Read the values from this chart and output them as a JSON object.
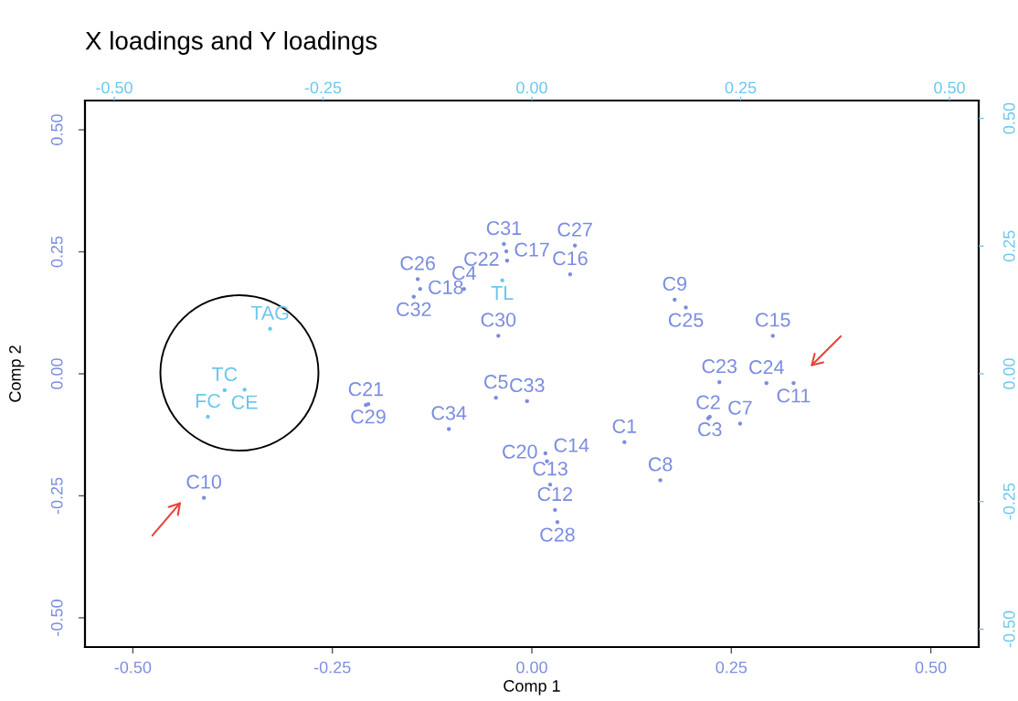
{
  "chart_data": {
    "type": "scatter",
    "title": "X loadings and Y loadings",
    "xlabel": "Comp 1",
    "ylabel": "Comp 2",
    "marker": "circle",
    "xlim": [
      -0.56,
      0.56
    ],
    "ylim": [
      -0.56,
      0.56
    ],
    "xticks": [
      {
        "value": -0.5,
        "label": "-0.50"
      },
      {
        "value": -0.25,
        "label": "-0.25"
      },
      {
        "value": 0,
        "label": "0.00"
      },
      {
        "value": 0.25,
        "label": "0.25"
      },
      {
        "value": 0.5,
        "label": "0.50"
      }
    ],
    "yticks": [
      {
        "value": -0.5,
        "label": "-0.50"
      },
      {
        "value": -0.25,
        "label": "-0.25"
      },
      {
        "value": 0,
        "label": "0.00"
      },
      {
        "value": 0.25,
        "label": "0.25"
      },
      {
        "value": 0.5,
        "label": "0.50"
      }
    ],
    "x2lim": [
      -0.535,
      0.535
    ],
    "y2lim": [
      -0.535,
      0.535
    ],
    "x2ticks": [
      {
        "value": -0.5,
        "label": "-0.50"
      },
      {
        "value": -0.25,
        "label": "-0.25"
      },
      {
        "value": 0,
        "label": "0.00"
      },
      {
        "value": 0.25,
        "label": "0.25"
      },
      {
        "value": 0.5,
        "label": "0.50"
      }
    ],
    "y2ticks": [
      {
        "value": -0.5,
        "label": "-0.50"
      },
      {
        "value": -0.25,
        "label": "-0.25"
      },
      {
        "value": 0,
        "label": "0.00"
      },
      {
        "value": 0.25,
        "label": "0.25"
      },
      {
        "value": 0.5,
        "label": "0.50"
      }
    ],
    "series": [
      {
        "color": "#7b8ce0",
        "x": [
          0.116,
          0.221,
          0.223,
          -0.085,
          -0.045,
          0.261,
          0.161,
          0.179,
          -0.411,
          0.328,
          0.029,
          0.023,
          0.019,
          0.302,
          0.048,
          -0.032,
          -0.14,
          0.017,
          -0.208,
          -0.031,
          0.235,
          0.294,
          0.193,
          -0.143,
          0.054,
          0.032,
          -0.205,
          -0.042,
          -0.035,
          -0.148,
          -0.006,
          -0.104
        ],
        "values": [
          -0.14,
          -0.091,
          -0.088,
          0.174,
          -0.049,
          -0.102,
          -0.218,
          0.152,
          -0.254,
          -0.019,
          -0.279,
          -0.227,
          -0.179,
          0.078,
          0.204,
          0.251,
          0.174,
          -0.163,
          -0.064,
          0.232,
          -0.017,
          -0.019,
          0.136,
          0.194,
          0.263,
          -0.304,
          -0.062,
          0.078,
          0.266,
          0.158,
          -0.056,
          -0.113
        ],
        "value_labels": [
          "C1",
          "C2",
          "C3",
          "C4",
          "C5",
          "C7",
          "C8",
          "C9",
          "C10",
          "C11",
          "C12",
          "C13",
          "C14",
          "C15",
          "C16",
          "C17",
          "C18",
          "C20",
          "C21",
          "C22",
          "C23",
          "C24",
          "C25",
          "C26",
          "C27",
          "C28",
          "C29",
          "C30",
          "C31",
          "C32",
          "C33",
          "C34"
        ]
      },
      {
        "color": "#6cc6ee",
        "axis": "y2",
        "x": [
          -0.328,
          -0.385,
          -0.36,
          -0.406,
          -0.037
        ],
        "values": [
          0.088,
          -0.032,
          -0.031,
          -0.084,
          0.183
        ],
        "value_labels": [
          "TAG",
          "TC",
          "CE",
          "FC",
          "TL"
        ]
      }
    ]
  }
}
